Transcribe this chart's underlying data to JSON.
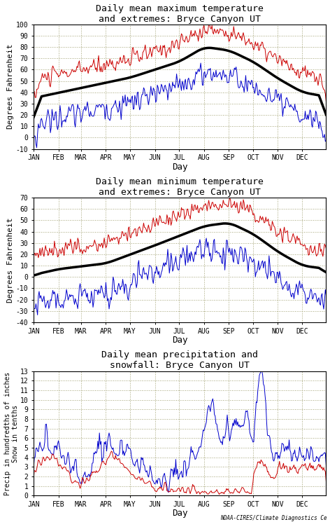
{
  "title1": "Daily mean maximum temperature\nand extremes: Bryce Canyon UT",
  "title2": "Daily mean minimum temperature\nand extremes: Bryce Canyon UT",
  "title3": "Daily mean precipitation and\nsnowfall: Bryce Canyon UT",
  "ylabel1": "Degrees Fahrenheit",
  "ylabel2": "Degrees Fahrenheit",
  "ylabel3": "Precip in hundredths of inches\nSnow in tenths",
  "xlabel": "Day",
  "months": [
    "JAN",
    "FEB",
    "MAR",
    "APR",
    "MAY",
    "JUN",
    "JUL",
    "AUG",
    "SEP",
    "OCT",
    "NOV",
    "DEC"
  ],
  "color_mean": "#000000",
  "color_max": "#cc0000",
  "color_min": "#0000cc",
  "bg_color": "#ffffff",
  "grid_color": "#999966",
  "ylim1": [
    -10,
    100
  ],
  "ylim2": [
    -40,
    70
  ],
  "ylim3": [
    0,
    13
  ],
  "yticks1": [
    -10,
    0,
    10,
    20,
    30,
    40,
    50,
    60,
    70,
    80,
    90,
    100
  ],
  "yticks2": [
    -40,
    -30,
    -20,
    -10,
    0,
    10,
    20,
    30,
    40,
    50,
    60,
    70
  ],
  "yticks3": [
    0,
    1,
    2,
    3,
    4,
    5,
    6,
    7,
    8,
    9,
    10,
    11,
    12,
    13
  ],
  "title_fontsize": 9.5,
  "label_fontsize": 8,
  "tick_fontsize": 7,
  "watermark": "NOAA-CIRES/Climate Diagnostics Ce",
  "lw_mean": 2.5,
  "lw_data": 0.7
}
